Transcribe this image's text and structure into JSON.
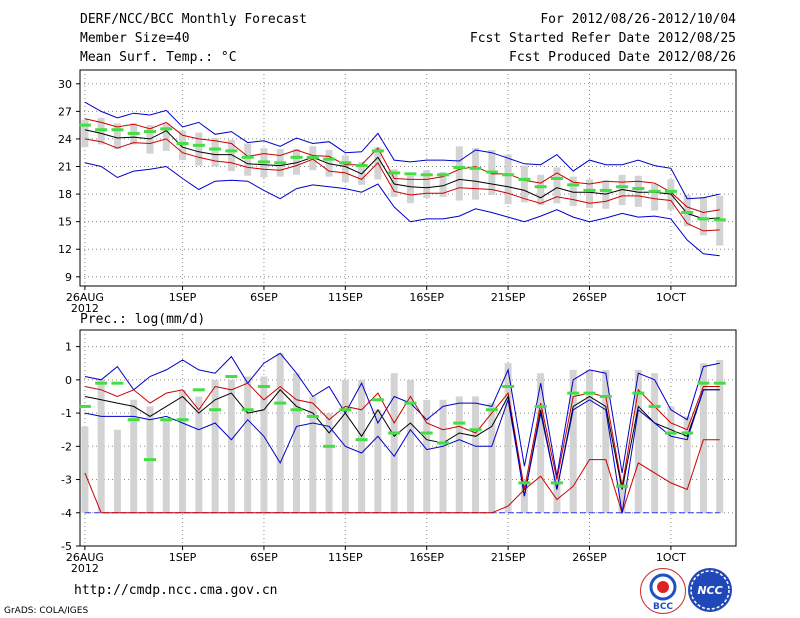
{
  "header": {
    "title": "DERF/NCC/BCC Monthly Forecast",
    "member": "Member Size=40",
    "variable": "Mean Surf. Temp.: °C",
    "period": "For 2012/08/26-2012/10/04",
    "started": "Fcst Started Refer Date 2012/08/25",
    "produced": "Fcst Produced Date 2012/08/26"
  },
  "footer": {
    "url": "http://cmdp.ncc.cma.gov.cn",
    "credit": "GrADS: COLA/IGES"
  },
  "logos": {
    "left_label": "BCC",
    "right_label": "NCC"
  },
  "colors": {
    "envelope": "#0000cc",
    "spread": "#cc0000",
    "mean": "#000000",
    "obs": "#44dd44",
    "bar": "#d3d3d3",
    "floor": "#3333ff"
  },
  "chart_data": [
    {
      "type": "line",
      "title": "Mean Surf. Temp.: °C",
      "xlabel": "",
      "ylabel": "°C",
      "x_ticks": [
        "26AUG\n2012",
        "1SEP",
        "6SEP",
        "11SEP",
        "16SEP",
        "21SEP",
        "26SEP",
        "1OCT"
      ],
      "x_tick_days": [
        1,
        7,
        12,
        17,
        22,
        27,
        32,
        37
      ],
      "y_ticks": [
        9,
        12,
        15,
        18,
        21,
        24,
        27,
        30
      ],
      "ylim": [
        8,
        31.5
      ],
      "xlim": [
        0.7,
        41
      ],
      "days": [
        1,
        2,
        3,
        4,
        5,
        6,
        7,
        8,
        9,
        10,
        11,
        12,
        13,
        14,
        15,
        16,
        17,
        18,
        19,
        20,
        21,
        22,
        23,
        24,
        25,
        26,
        27,
        28,
        29,
        30,
        31,
        32,
        33,
        34,
        35,
        36,
        37,
        38,
        39,
        40
      ],
      "series": [
        {
          "name": "max",
          "values": [
            28.0,
            27.0,
            26.3,
            26.8,
            26.6,
            27.1,
            25.3,
            25.8,
            24.5,
            24.8,
            23.6,
            23.8,
            23.2,
            24.1,
            23.5,
            23.7,
            22.5,
            22.6,
            24.6,
            21.7,
            21.5,
            21.7,
            21.7,
            21.6,
            22.8,
            22.5,
            21.9,
            21.3,
            21.2,
            22.3,
            20.5,
            21.7,
            21.2,
            21.2,
            21.7,
            21.1,
            20.8,
            17.5,
            17.6,
            18.0
          ]
        },
        {
          "name": "upper",
          "values": [
            26.2,
            25.8,
            25.3,
            25.6,
            25.1,
            25.8,
            24.4,
            24.0,
            23.8,
            23.5,
            22.1,
            22.4,
            22.2,
            22.8,
            22.2,
            22.1,
            21.2,
            21.2,
            23.0,
            19.7,
            19.6,
            19.6,
            19.9,
            20.7,
            21.0,
            20.2,
            20.2,
            19.5,
            19.2,
            20.3,
            19.3,
            19.1,
            19.4,
            19.3,
            19.4,
            19.2,
            18.2,
            16.6,
            16.0,
            16.3
          ]
        },
        {
          "name": "mean",
          "values": [
            25.0,
            24.6,
            24.1,
            24.2,
            24.0,
            24.9,
            23.1,
            22.6,
            22.3,
            22.3,
            21.3,
            21.2,
            21.1,
            21.4,
            22.0,
            21.3,
            21.0,
            20.2,
            22.0,
            19.1,
            18.8,
            18.7,
            18.9,
            19.6,
            19.4,
            19.1,
            18.8,
            18.4,
            17.6,
            18.7,
            18.2,
            18.2,
            18.0,
            18.5,
            18.2,
            18.2,
            18.0,
            15.9,
            15.3,
            15.4
          ]
        },
        {
          "name": "lower",
          "values": [
            24.0,
            23.7,
            23.0,
            23.6,
            23.5,
            24.0,
            22.5,
            22.0,
            21.6,
            21.4,
            20.9,
            20.7,
            20.6,
            21.1,
            21.8,
            20.5,
            20.3,
            19.6,
            21.4,
            18.3,
            17.9,
            18.1,
            18.1,
            18.7,
            18.6,
            18.5,
            18.1,
            17.5,
            17.0,
            17.7,
            17.4,
            17.0,
            17.2,
            17.8,
            17.8,
            17.5,
            17.3,
            14.8,
            14.0,
            14.1
          ]
        },
        {
          "name": "min",
          "values": [
            21.4,
            21.0,
            19.8,
            20.5,
            20.7,
            21.0,
            19.7,
            18.5,
            19.4,
            19.5,
            19.4,
            18.4,
            17.5,
            18.6,
            19.0,
            18.8,
            18.6,
            18.2,
            19.1,
            16.6,
            15.0,
            15.3,
            15.3,
            15.6,
            16.4,
            16.0,
            15.5,
            15.0,
            15.6,
            16.3,
            15.5,
            15.0,
            15.4,
            15.9,
            15.5,
            15.6,
            15.3,
            13.0,
            11.5,
            11.3
          ]
        }
      ],
      "bars_low": [
        23.1,
        23.4,
        22.9,
        23.4,
        22.4,
        22.7,
        21.7,
        21.1,
        21.0,
        20.5,
        20.0,
        19.8,
        19.9,
        20.1,
        20.6,
        19.9,
        19.3,
        19.0,
        19.6,
        17.7,
        17.0,
        17.6,
        17.7,
        17.3,
        17.4,
        17.9,
        16.9,
        17.1,
        16.8,
        17.0,
        16.7,
        16.5,
        16.4,
        16.8,
        16.6,
        16.2,
        16.3,
        14.5,
        13.5,
        12.4
      ],
      "bars_high": [
        26.1,
        26.3,
        25.7,
        25.7,
        25.5,
        25.7,
        24.9,
        24.7,
        24.1,
        23.9,
        23.5,
        23.0,
        22.9,
        22.9,
        23.2,
        22.8,
        22.2,
        21.5,
        23.1,
        20.7,
        20.0,
        20.6,
        20.4,
        23.2,
        23.0,
        22.8,
        22.3,
        21.1,
        20.1,
        20.9,
        19.9,
        19.6,
        19.5,
        20.1,
        20.0,
        19.1,
        19.6,
        17.9,
        17.7,
        17.8
      ],
      "obs": [
        25.5,
        25.0,
        25.0,
        24.6,
        24.8,
        25.1,
        23.5,
        23.3,
        22.9,
        22.7,
        22.0,
        21.5,
        21.4,
        22.0,
        22.0,
        21.8,
        21.4,
        21.1,
        22.7,
        20.3,
        20.2,
        20.1,
        20.1,
        20.9,
        20.8,
        20.4,
        20.1,
        19.6,
        18.8,
        19.7,
        19.0,
        18.4,
        18.4,
        18.8,
        18.6,
        18.3,
        18.3,
        16.0,
        15.3,
        15.2
      ]
    },
    {
      "type": "line",
      "title": "Prec.: log(mm/d)",
      "xlabel": "",
      "ylabel": "log(mm/d)",
      "x_ticks": [
        "26AUG\n2012",
        "1SEP",
        "6SEP",
        "11SEP",
        "16SEP",
        "21SEP",
        "26SEP",
        "1OCT"
      ],
      "x_tick_days": [
        1,
        7,
        12,
        17,
        22,
        27,
        32,
        37
      ],
      "y_ticks": [
        -5,
        -4,
        -3,
        -2,
        -1,
        0,
        1
      ],
      "ylim": [
        -5,
        1.5
      ],
      "xlim": [
        0.7,
        41
      ],
      "days": [
        1,
        2,
        3,
        4,
        5,
        6,
        7,
        8,
        9,
        10,
        11,
        12,
        13,
        14,
        15,
        16,
        17,
        18,
        19,
        20,
        21,
        22,
        23,
        24,
        25,
        26,
        27,
        28,
        29,
        30,
        31,
        32,
        33,
        34,
        35,
        36,
        37,
        38,
        39,
        40
      ],
      "floor": -4,
      "series": [
        {
          "name": "max",
          "values": [
            0.1,
            0.0,
            0.4,
            -0.3,
            0.1,
            0.3,
            0.6,
            0.3,
            0.2,
            0.7,
            -0.1,
            0.5,
            0.8,
            0.2,
            -0.5,
            -0.2,
            -1.0,
            -0.1,
            -1.3,
            -0.5,
            -0.7,
            -1.2,
            -0.8,
            -0.7,
            -0.7,
            -0.8,
            0.3,
            -2.6,
            -0.1,
            -2.9,
            0.0,
            0.3,
            0.2,
            -2.8,
            0.2,
            0.0,
            -0.9,
            -1.2,
            0.4,
            0.5
          ]
        },
        {
          "name": "upper",
          "values": [
            -0.2,
            -0.3,
            -0.5,
            -0.3,
            -0.7,
            -0.4,
            -0.3,
            -0.9,
            -0.2,
            -0.3,
            -0.1,
            -0.6,
            -0.2,
            -0.6,
            -0.7,
            -1.2,
            -0.8,
            -0.9,
            -0.4,
            -1.3,
            -0.5,
            -1.3,
            -1.5,
            -1.4,
            -1.6,
            -1.0,
            -0.4,
            -3.3,
            -0.7,
            -3.0,
            -0.5,
            -0.4,
            -0.5,
            -3.2,
            -0.3,
            -0.8,
            -1.3,
            -1.5,
            -0.2,
            -0.2
          ]
        },
        {
          "name": "mean",
          "values": [
            -0.5,
            -0.6,
            -0.7,
            -0.8,
            -1.1,
            -0.8,
            -0.5,
            -1.0,
            -0.6,
            -0.4,
            -1.0,
            -0.9,
            -0.3,
            -0.8,
            -1.0,
            -1.6,
            -1.0,
            -1.7,
            -0.9,
            -1.7,
            -1.3,
            -1.8,
            -1.9,
            -1.6,
            -1.7,
            -1.4,
            -0.5,
            -3.5,
            -0.9,
            -3.3,
            -0.8,
            -0.5,
            -0.8,
            -3.3,
            -0.8,
            -1.3,
            -1.5,
            -1.7,
            -0.3,
            -0.3
          ]
        },
        {
          "name": "lower",
          "values": [
            -2.8,
            -4.0,
            -4.0,
            -4.0,
            -4.0,
            -4.0,
            -4.0,
            -4.0,
            -4.0,
            -4.0,
            -4.0,
            -4.0,
            -4.0,
            -4.0,
            -4.0,
            -4.0,
            -4.0,
            -4.0,
            -4.0,
            -4.0,
            -4.0,
            -4.0,
            -4.0,
            -4.0,
            -4.0,
            -4.0,
            -3.8,
            -3.3,
            -2.9,
            -3.6,
            -3.2,
            -2.4,
            -2.4,
            -4.0,
            -2.5,
            -2.8,
            -3.1,
            -3.3,
            -1.8,
            -1.8
          ]
        },
        {
          "name": "min",
          "values": [
            -1.0,
            -1.1,
            -1.1,
            -1.1,
            -1.2,
            -1.1,
            -1.3,
            -1.5,
            -1.3,
            -1.8,
            -1.2,
            -1.7,
            -2.5,
            -1.4,
            -1.3,
            -1.4,
            -2.0,
            -2.2,
            -1.7,
            -2.3,
            -1.5,
            -2.1,
            -2.0,
            -1.8,
            -2.0,
            -2.0,
            -0.6,
            -3.5,
            -1.0,
            -3.3,
            -0.9,
            -0.6,
            -0.9,
            -4.0,
            -0.9,
            -1.3,
            -1.7,
            -1.8,
            -0.3,
            -0.3
          ]
        }
      ],
      "bars_low": [
        -4.0,
        -4.0,
        -4.0,
        -4.0,
        -4.0,
        -4.0,
        -4.0,
        -4.0,
        -4.0,
        -4.0,
        -4.0,
        -4.0,
        -4.0,
        -4.0,
        -4.0,
        -4.0,
        -4.0,
        -4.0,
        -4.0,
        -4.0,
        -4.0,
        -4.0,
        -4.0,
        -4.0,
        -4.0,
        -4.0,
        -4.0,
        -4.0,
        -4.0,
        -4.0,
        -4.0,
        -4.0,
        -4.0,
        -4.0,
        -4.0,
        -4.0,
        -4.0,
        -4.0,
        -4.0,
        -4.0
      ],
      "bars_high": [
        -1.4,
        0.0,
        -1.5,
        -0.6,
        -0.8,
        -1.2,
        -0.3,
        -0.5,
        0.0,
        0.0,
        0.1,
        0.1,
        0.8,
        0.2,
        -0.5,
        -1.0,
        0.0,
        0.0,
        -0.9,
        0.2,
        0.0,
        -0.6,
        -0.6,
        -0.5,
        -0.5,
        -0.7,
        0.5,
        -3.0,
        0.2,
        -2.9,
        0.3,
        0.3,
        0.3,
        -3.0,
        0.3,
        0.2,
        -0.8,
        -1.1,
        0.5,
        0.6
      ],
      "obs": [
        -0.8,
        -0.1,
        -0.1,
        -1.2,
        -2.4,
        -1.2,
        -1.2,
        -0.3,
        -0.9,
        0.1,
        -0.9,
        -0.2,
        -0.7,
        -0.9,
        -1.1,
        -2.0,
        -0.9,
        -1.8,
        -0.6,
        -1.6,
        -0.7,
        -1.6,
        -1.9,
        -1.3,
        -1.5,
        -0.9,
        -0.2,
        -3.1,
        -0.8,
        -3.1,
        -0.4,
        -0.4,
        -0.5,
        -3.2,
        -0.4,
        -0.8,
        -1.6,
        -1.6,
        -0.1,
        -0.1
      ]
    }
  ]
}
